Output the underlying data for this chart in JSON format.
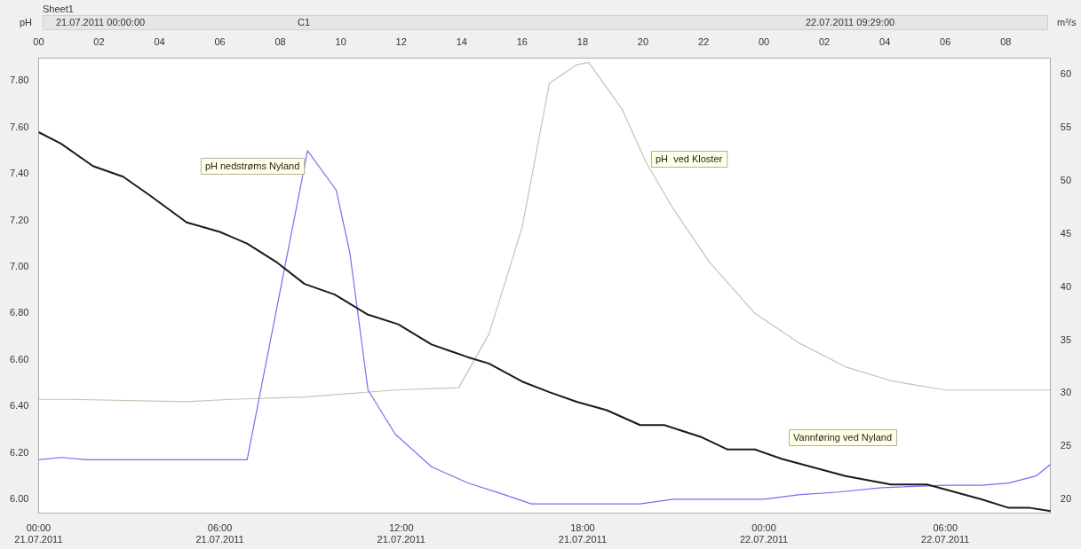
{
  "chart_data": {
    "type": "line",
    "title": "Sheet1",
    "ylabel": "pH",
    "y2label": "m³/s",
    "annotations": [
      "21.07.2011 00:00:00",
      "C1",
      "22.07.2011 09:29:00"
    ],
    "xlim": [
      "2011-07-21T00:00",
      "2011-07-22T09:29"
    ],
    "xticks": [
      {
        "value": "2011-07-21T00:00",
        "label": "00:00\n21.07.2011"
      },
      {
        "value": "2011-07-21T06:00",
        "label": "06:00\n21.07.2011"
      },
      {
        "value": "2011-07-21T12:00",
        "label": "12:00\n21.07.2011"
      },
      {
        "value": "2011-07-21T18:00",
        "label": "18:00\n21.07.2011"
      },
      {
        "value": "2011-07-22T00:00",
        "label": "00:00\n22.07.2011"
      },
      {
        "value": "2011-07-22T06:00",
        "label": "06:00\n22.07.2011"
      }
    ],
    "x2lim": [
      "2011-07-21T00:00",
      "2011-07-22T09:29"
    ],
    "x2ticks": [
      {
        "value": "2011-07-21T00:00",
        "label": "00"
      },
      {
        "value": "2011-07-21T02:00",
        "label": "02"
      },
      {
        "value": "2011-07-21T04:00",
        "label": "04"
      },
      {
        "value": "2011-07-21T06:00",
        "label": "06"
      },
      {
        "value": "2011-07-21T08:00",
        "label": "08"
      },
      {
        "value": "2011-07-21T10:00",
        "label": "10"
      },
      {
        "value": "2011-07-21T12:00",
        "label": "12"
      },
      {
        "value": "2011-07-21T14:00",
        "label": "14"
      },
      {
        "value": "2011-07-21T16:00",
        "label": "16"
      },
      {
        "value": "2011-07-21T18:00",
        "label": "18"
      },
      {
        "value": "2011-07-21T20:00",
        "label": "20"
      },
      {
        "value": "2011-07-21T22:00",
        "label": "22"
      },
      {
        "value": "2011-07-22T00:00",
        "label": "00"
      },
      {
        "value": "2011-07-22T02:00",
        "label": "02"
      },
      {
        "value": "2011-07-22T04:00",
        "label": "04"
      },
      {
        "value": "2011-07-22T06:00",
        "label": "06"
      },
      {
        "value": "2011-07-22T08:00",
        "label": "08"
      }
    ],
    "ylim": [
      5.94,
      7.9
    ],
    "yticks": [
      {
        "value": 6,
        "label": "6.00"
      },
      {
        "value": 6.2,
        "label": "6.20"
      },
      {
        "value": 6.4,
        "label": "6.40"
      },
      {
        "value": 6.6,
        "label": "6.60"
      },
      {
        "value": 6.8,
        "label": "6.80"
      },
      {
        "value": 7,
        "label": "7.00"
      },
      {
        "value": 7.2,
        "label": "7.20"
      },
      {
        "value": 7.4,
        "label": "7.40"
      },
      {
        "value": 7.6,
        "label": "7.60"
      },
      {
        "value": 7.8,
        "label": "7.80"
      }
    ],
    "y2lim": [
      18.7,
      61.6
    ],
    "y2ticks": [
      20,
      25,
      30,
      35,
      40,
      45,
      50,
      55,
      60
    ],
    "marker": "none",
    "series": [
      {
        "name": "Vannføring ved Nyland",
        "color": "#1a1a1a",
        "axis": "y2",
        "x": [
          "2011-07-21T00:00",
          "2011-07-21T00:45",
          "2011-07-21T01:48",
          "2011-07-21T02:48",
          "2011-07-21T03:42",
          "2011-07-21T04:54",
          "2011-07-21T06:00",
          "2011-07-21T06:54",
          "2011-07-21T07:54",
          "2011-07-21T08:48",
          "2011-07-21T09:48",
          "2011-07-21T10:54",
          "2011-07-21T11:54",
          "2011-07-21T13:00",
          "2011-07-21T14:12",
          "2011-07-21T14:54",
          "2011-07-21T16:00",
          "2011-07-21T16:54",
          "2011-07-21T17:48",
          "2011-07-21T18:48",
          "2011-07-21T19:54",
          "2011-07-21T20:42",
          "2011-07-21T21:54",
          "2011-07-21T22:48",
          "2011-07-21T23:42",
          "2011-07-22T00:36",
          "2011-07-22T02:42",
          "2011-07-22T04:12",
          "2011-07-22T05:24",
          "2011-07-22T07:12",
          "2011-07-22T08:06",
          "2011-07-22T08:48",
          "2011-07-22T09:29"
        ],
        "values": [
          54.6,
          53.5,
          51.4,
          50.4,
          48.6,
          46.1,
          45.2,
          44.1,
          42.3,
          40.3,
          39.3,
          37.4,
          36.5,
          34.6,
          33.4,
          32.8,
          31.1,
          30.1,
          29.2,
          28.4,
          27,
          27,
          25.9,
          24.7,
          24.7,
          23.8,
          22.2,
          21.4,
          21.4,
          20,
          19.2,
          19.2,
          18.9
        ]
      },
      {
        "name": "pH nedstrøms Nyland",
        "color": "#7070f0",
        "axis": "y",
        "x": [
          "2011-07-21T00:00",
          "2011-07-21T00:45",
          "2011-07-21T01:36",
          "2011-07-21T06:54",
          "2011-07-21T08:54",
          "2011-07-21T09:51",
          "2011-07-21T10:18",
          "2011-07-21T10:54",
          "2011-07-21T11:48",
          "2011-07-21T13:00",
          "2011-07-21T14:12",
          "2011-07-21T15:24",
          "2011-07-21T16:18",
          "2011-07-21T19:54",
          "2011-07-21T21:00",
          "2011-07-22T00:00",
          "2011-07-22T01:12",
          "2011-07-22T02:24",
          "2011-07-22T03:54",
          "2011-07-22T06:00",
          "2011-07-22T07:12",
          "2011-07-22T08:06",
          "2011-07-22T09:00",
          "2011-07-22T09:29"
        ],
        "values": [
          6.17,
          6.18,
          6.17,
          6.17,
          7.5,
          7.33,
          7.06,
          6.47,
          6.28,
          6.14,
          6.07,
          6.02,
          5.98,
          5.98,
          6,
          6,
          6.02,
          6.03,
          6.05,
          6.06,
          6.06,
          6.07,
          6.1,
          6.15
        ]
      },
      {
        "name": "pH  ved Kloster",
        "color": "#c8c2b0",
        "axis": "y",
        "x": [
          "2011-07-21T00:00",
          "2011-07-21T01:00",
          "2011-07-21T04:54",
          "2011-07-21T06:24",
          "2011-07-21T08:48",
          "2011-07-21T11:48",
          "2011-07-21T13:54",
          "2011-07-21T14:54",
          "2011-07-21T16:00",
          "2011-07-21T16:54",
          "2011-07-21T17:48",
          "2011-07-21T18:12",
          "2011-07-21T19:18",
          "2011-07-21T20:06",
          "2011-07-21T21:00",
          "2011-07-21T22:12",
          "2011-07-21T23:42",
          "2011-07-22T01:12",
          "2011-07-22T02:42",
          "2011-07-22T04:12",
          "2011-07-22T06:00",
          "2011-07-22T07:48",
          "2011-07-22T09:29"
        ],
        "values": [
          6.43,
          6.43,
          6.42,
          6.43,
          6.44,
          6.47,
          6.48,
          6.71,
          7.17,
          7.79,
          7.87,
          7.88,
          7.68,
          7.45,
          7.25,
          7.02,
          6.8,
          6.67,
          6.57,
          6.51,
          6.47,
          6.47,
          6.47
        ]
      }
    ]
  }
}
